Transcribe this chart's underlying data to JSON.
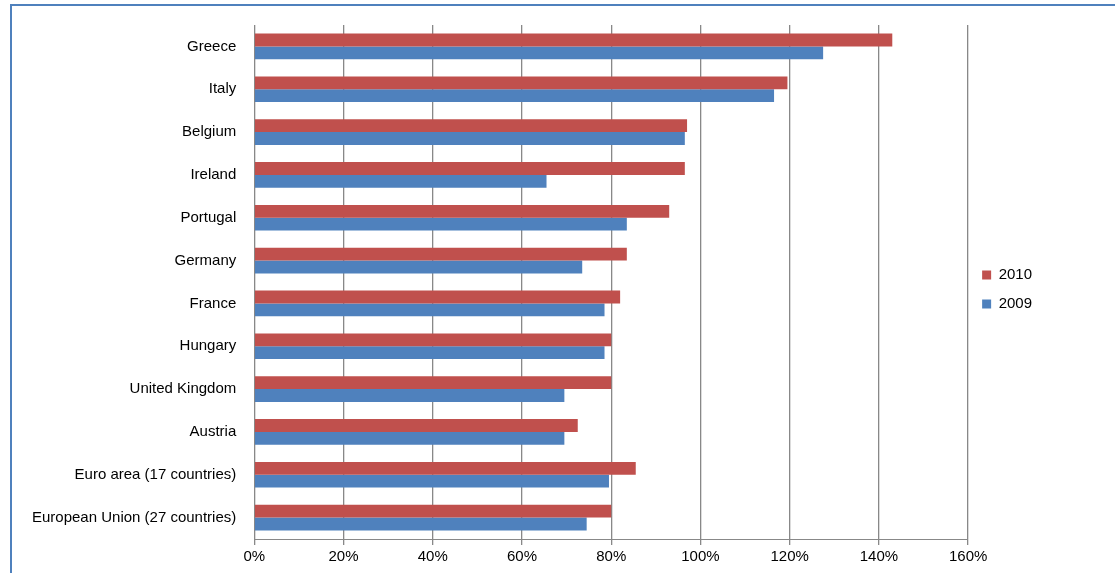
{
  "chart_data": {
    "type": "bar",
    "orientation": "horizontal",
    "categories": [
      "Greece",
      "Italy",
      "Belgium",
      "Ireland",
      "Portugal",
      "Germany",
      "France",
      "Hungary",
      "United Kingdom",
      "Austria",
      "Euro area (17 countries)",
      "European Union (27 countries)"
    ],
    "series": [
      {
        "name": "2010",
        "color": "#c0504d",
        "values": [
          143,
          119.5,
          97,
          96.5,
          93,
          83.5,
          82,
          80,
          80,
          72.5,
          85.5,
          80
        ]
      },
      {
        "name": "2009",
        "color": "#4f81bd",
        "values": [
          127.5,
          116.5,
          96.5,
          65.5,
          83.5,
          73.5,
          78.5,
          78.5,
          69.5,
          69.5,
          79.5,
          74.5
        ]
      }
    ],
    "xlim": [
      0,
      160
    ],
    "xticks": [
      {
        "value": 0,
        "label": "0%"
      },
      {
        "value": 20,
        "label": "20%"
      },
      {
        "value": 40,
        "label": "40%"
      },
      {
        "value": 60,
        "label": "60%"
      },
      {
        "value": 80,
        "label": "80%"
      },
      {
        "value": 100,
        "label": "100%"
      },
      {
        "value": 120,
        "label": "120%"
      },
      {
        "value": 140,
        "label": "140%"
      },
      {
        "value": 160,
        "label": "160%"
      }
    ],
    "grid": "x",
    "legend": "right"
  }
}
